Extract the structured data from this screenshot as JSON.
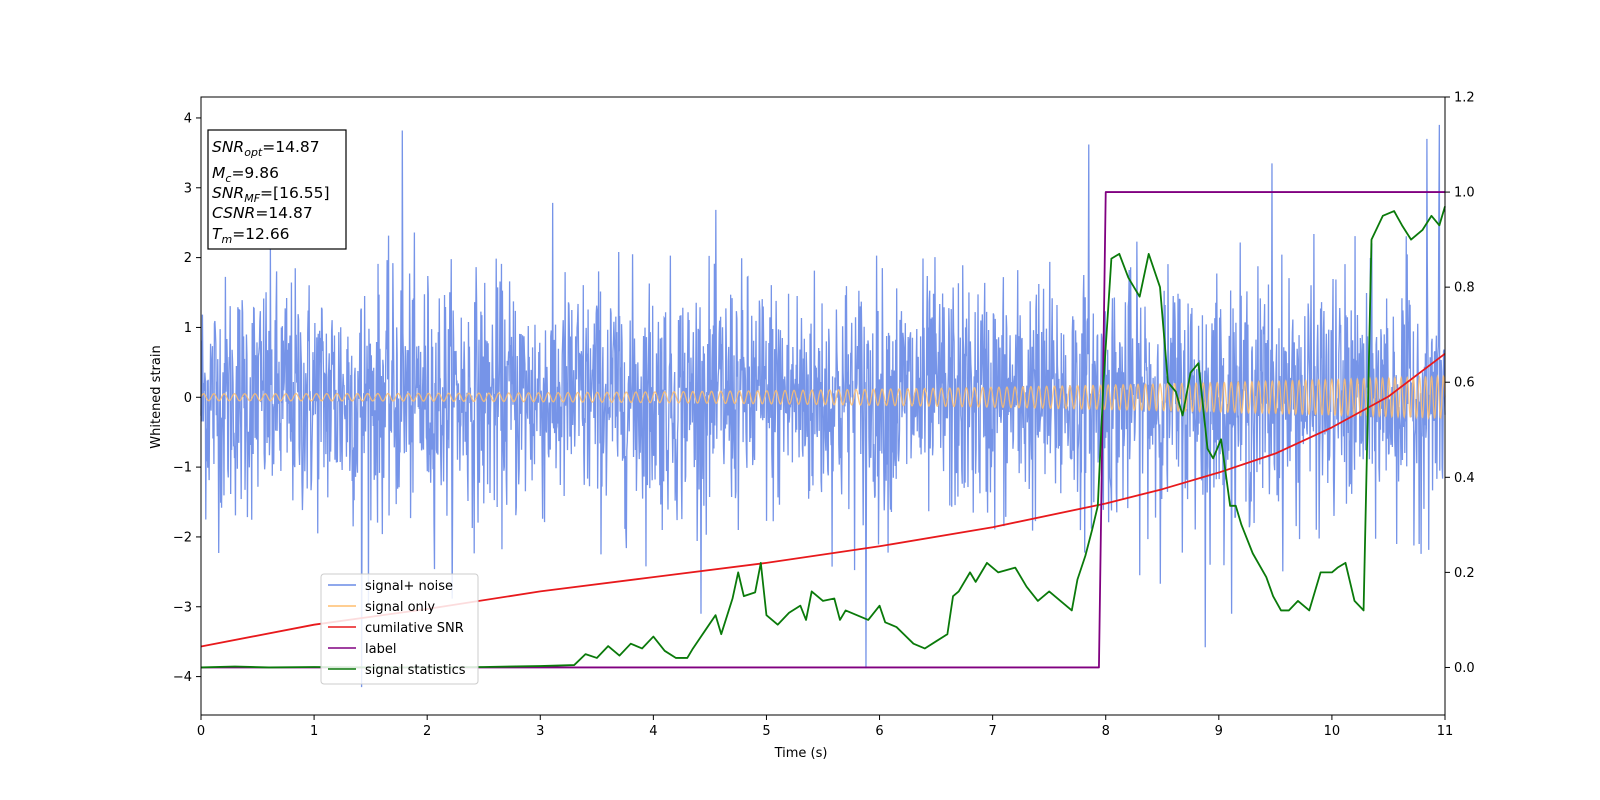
{
  "chart_data": {
    "type": "line",
    "title": "",
    "xlabel": "Time (s)",
    "ylabel": "Whitened strain",
    "y2label": "",
    "xlim": [
      0,
      11
    ],
    "ylim": [
      -4.55,
      4.3
    ],
    "y2lim": [
      -0.1,
      1.2
    ],
    "xticks": [
      0,
      1,
      2,
      3,
      4,
      5,
      6,
      7,
      8,
      9,
      10,
      11
    ],
    "yticks": [
      -4,
      -3,
      -2,
      -1,
      0,
      1,
      2,
      3,
      4
    ],
    "y2ticks": [
      "0.0",
      "0.2",
      "0.4",
      "0.6",
      "0.8",
      "1.0",
      "1.2"
    ],
    "grid": false,
    "legend_position": "lower-left",
    "series": [
      {
        "name": "signal+ noise",
        "axis": "left",
        "color": "#6a8be6",
        "description": "dense noisy strain, approx. +-2.3 envelope with spikes up to ~3.9",
        "spikes": [
          {
            "x": 1.42,
            "y": -4.15
          },
          {
            "x": 1.78,
            "y": 3.82
          },
          {
            "x": 10.95,
            "y": 3.9
          },
          {
            "x": 10.84,
            "y": 3.7
          },
          {
            "x": 5.88,
            "y": -3.88
          },
          {
            "x": 8.88,
            "y": -3.58
          },
          {
            "x": 7.85,
            "y": 3.62
          },
          {
            "x": 9.47,
            "y": 3.35
          }
        ]
      },
      {
        "name": "signal only",
        "axis": "left",
        "color": "#ffbe6e",
        "description": "chirp oscillation, amplitude grows from ~0.05 to ~0.3",
        "amplitude_start": 0.05,
        "amplitude_end": 0.3
      },
      {
        "name": "cumilative SNR",
        "axis": "right",
        "color": "#e8191c",
        "x": [
          0,
          1,
          2,
          3,
          4,
          5,
          6,
          7,
          8,
          8.5,
          9,
          9.5,
          10,
          10.5,
          11
        ],
        "y": [
          0.044,
          0.09,
          0.123,
          0.16,
          0.19,
          0.22,
          0.255,
          0.295,
          0.345,
          0.375,
          0.41,
          0.45,
          0.505,
          0.57,
          0.66
        ]
      },
      {
        "name": "label",
        "axis": "right",
        "color": "#800080",
        "x": [
          0,
          7.94,
          8.0,
          11
        ],
        "y": [
          0,
          0,
          1,
          1
        ]
      },
      {
        "name": "signal statistics",
        "axis": "right",
        "color": "#0a7a0a",
        "x": [
          0,
          0.3,
          0.6,
          1.0,
          1.5,
          2.0,
          2.5,
          3.0,
          3.3,
          3.4,
          3.5,
          3.6,
          3.7,
          3.8,
          3.9,
          4.0,
          4.1,
          4.2,
          4.3,
          4.35,
          4.45,
          4.55,
          4.6,
          4.7,
          4.75,
          4.8,
          4.9,
          4.95,
          5.0,
          5.1,
          5.2,
          5.3,
          5.35,
          5.4,
          5.5,
          5.6,
          5.65,
          5.7,
          5.8,
          5.9,
          6.0,
          6.05,
          6.15,
          6.3,
          6.4,
          6.5,
          6.6,
          6.65,
          6.7,
          6.8,
          6.85,
          6.95,
          7.05,
          7.2,
          7.3,
          7.4,
          7.5,
          7.6,
          7.7,
          7.75,
          7.82,
          7.88,
          7.93,
          7.98,
          8.05,
          8.12,
          8.2,
          8.3,
          8.38,
          8.48,
          8.55,
          8.62,
          8.68,
          8.75,
          8.82,
          8.9,
          8.95,
          9.02,
          9.1,
          9.15,
          9.2,
          9.3,
          9.42,
          9.48,
          9.55,
          9.62,
          9.7,
          9.8,
          9.9,
          10.0,
          10.05,
          10.12,
          10.2,
          10.28,
          10.35,
          10.45,
          10.55,
          10.62,
          10.7,
          10.8,
          10.88,
          10.95,
          11.0
        ],
        "y": [
          0,
          0.002,
          0,
          0.001,
          0,
          0,
          0.001,
          0.003,
          0.005,
          0.028,
          0.02,
          0.045,
          0.025,
          0.05,
          0.04,
          0.065,
          0.035,
          0.02,
          0.02,
          0.04,
          0.075,
          0.11,
          0.07,
          0.145,
          0.2,
          0.15,
          0.158,
          0.22,
          0.11,
          0.09,
          0.115,
          0.13,
          0.1,
          0.16,
          0.14,
          0.145,
          0.1,
          0.12,
          0.11,
          0.1,
          0.13,
          0.095,
          0.085,
          0.05,
          0.04,
          0.055,
          0.07,
          0.15,
          0.16,
          0.2,
          0.18,
          0.22,
          0.2,
          0.21,
          0.17,
          0.14,
          0.16,
          0.14,
          0.12,
          0.185,
          0.235,
          0.29,
          0.34,
          0.6,
          0.86,
          0.87,
          0.82,
          0.78,
          0.87,
          0.8,
          0.6,
          0.58,
          0.53,
          0.62,
          0.64,
          0.46,
          0.44,
          0.48,
          0.34,
          0.34,
          0.3,
          0.24,
          0.19,
          0.15,
          0.12,
          0.12,
          0.14,
          0.12,
          0.2,
          0.2,
          0.21,
          0.22,
          0.14,
          0.12,
          0.9,
          0.95,
          0.96,
          0.93,
          0.9,
          0.92,
          0.95,
          0.93,
          0.97
        ]
      }
    ],
    "legend": [
      "signal+ noise",
      "signal only",
      "cumilative SNR",
      "label",
      "signal statistics"
    ],
    "info_box": {
      "snr_opt_base": "SNR",
      "snr_opt_sub": "opt",
      "snr_opt_value": "=14.87",
      "mc_base": "M",
      "mc_sub": "c",
      "mc_value": "=9.86",
      "snr_mf_base": "SNR",
      "snr_mf_sub": "MF",
      "snr_mf_value": "=[16.55]",
      "csnr_base": "CSNR",
      "csnr_value": "=14.87",
      "tm_base": "T",
      "tm_sub": "m",
      "tm_value": "=12.66"
    }
  }
}
